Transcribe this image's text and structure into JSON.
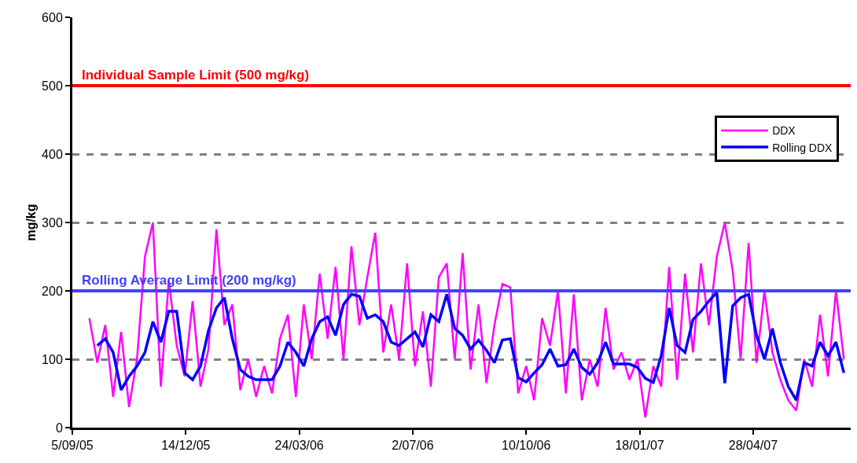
{
  "chart_data": {
    "type": "line",
    "ylabel": "mg/kg",
    "x": [
      "2005-09-20",
      "2005-09-27",
      "2005-10-04",
      "2005-10-11",
      "2005-10-18",
      "2005-10-25",
      "2005-11-01",
      "2005-11-08",
      "2005-11-15",
      "2005-11-22",
      "2005-11-29",
      "2005-12-06",
      "2005-12-13",
      "2005-12-20",
      "2005-12-27",
      "2006-01-03",
      "2006-01-10",
      "2006-01-17",
      "2006-01-24",
      "2006-01-31",
      "2006-02-07",
      "2006-02-14",
      "2006-02-21",
      "2006-02-28",
      "2006-03-07",
      "2006-03-14",
      "2006-03-21",
      "2006-03-28",
      "2006-04-04",
      "2006-04-11",
      "2006-04-18",
      "2006-04-25",
      "2006-05-02",
      "2006-05-09",
      "2006-05-16",
      "2006-05-23",
      "2006-05-30",
      "2006-06-06",
      "2006-06-13",
      "2006-06-20",
      "2006-06-27",
      "2006-07-04",
      "2006-07-11",
      "2006-07-18",
      "2006-07-25",
      "2006-08-01",
      "2006-08-08",
      "2006-08-15",
      "2006-08-22",
      "2006-08-29",
      "2006-09-05",
      "2006-09-12",
      "2006-09-19",
      "2006-09-26",
      "2006-10-03",
      "2006-10-10",
      "2006-10-17",
      "2006-10-24",
      "2006-10-31",
      "2006-11-07",
      "2006-11-14",
      "2006-11-21",
      "2006-11-28",
      "2006-12-05",
      "2006-12-12",
      "2006-12-19",
      "2006-12-26",
      "2007-01-02",
      "2007-01-09",
      "2007-01-16",
      "2007-01-23",
      "2007-01-30",
      "2007-02-06",
      "2007-02-13",
      "2007-02-20",
      "2007-02-27",
      "2007-03-06",
      "2007-03-13",
      "2007-03-20",
      "2007-03-27",
      "2007-04-03",
      "2007-04-10",
      "2007-04-17",
      "2007-04-24",
      "2007-05-01",
      "2007-05-08",
      "2007-05-15",
      "2007-05-22",
      "2007-05-29",
      "2007-06-05",
      "2007-06-12",
      "2007-06-19",
      "2007-06-26",
      "2007-07-03",
      "2007-07-10",
      "2007-07-17"
    ],
    "series": [
      {
        "name": "DDX",
        "color": "#ff00ff",
        "values": [
          160,
          95,
          150,
          45,
          140,
          30,
          100,
          250,
          300,
          60,
          215,
          120,
          75,
          185,
          60,
          115,
          290,
          150,
          180,
          55,
          100,
          45,
          90,
          50,
          130,
          165,
          45,
          180,
          100,
          225,
          130,
          235,
          100,
          265,
          150,
          220,
          285,
          110,
          180,
          100,
          240,
          90,
          170,
          60,
          220,
          240,
          100,
          255,
          85,
          180,
          65,
          150,
          210,
          205,
          50,
          90,
          40,
          160,
          120,
          200,
          50,
          195,
          40,
          100,
          60,
          175,
          85,
          110,
          70,
          100,
          15,
          90,
          60,
          235,
          70,
          225,
          110,
          240,
          150,
          250,
          300,
          230,
          100,
          270,
          95,
          200,
          110,
          70,
          40,
          25,
          100,
          60,
          165,
          75,
          200,
          100
        ]
      },
      {
        "name": "Rolling DDX",
        "color": "#0000ff",
        "values": [
          null,
          120,
          130,
          110,
          55,
          75,
          90,
          110,
          155,
          125,
          170,
          170,
          80,
          70,
          90,
          142,
          175,
          190,
          130,
          85,
          75,
          70,
          70,
          70,
          90,
          125,
          110,
          90,
          130,
          155,
          162,
          135,
          180,
          195,
          192,
          160,
          165,
          155,
          125,
          120,
          130,
          140,
          118,
          165,
          155,
          195,
          145,
          135,
          115,
          128,
          113,
          95,
          128,
          130,
          73,
          67,
          80,
          92,
          115,
          90,
          92,
          115,
          88,
          78,
          95,
          125,
          93,
          93,
          93,
          88,
          72,
          66,
          105,
          175,
          120,
          110,
          158,
          170,
          185,
          198,
          65,
          178,
          190,
          195,
          135,
          100,
          145,
          95,
          60,
          40,
          95,
          90,
          125,
          105,
          125,
          80
        ]
      }
    ],
    "xlim": [
      "2005-09-05",
      "2007-07-23"
    ],
    "xticks": [
      {
        "value": "2005-09-05",
        "label": "5/09/05"
      },
      {
        "value": "2005-12-14",
        "label": "14/12/05"
      },
      {
        "value": "2006-03-24",
        "label": "24/03/06"
      },
      {
        "value": "2006-07-02",
        "label": "2/07/06"
      },
      {
        "value": "2006-10-10",
        "label": "10/10/06"
      },
      {
        "value": "2007-01-18",
        "label": "18/01/07"
      },
      {
        "value": "2007-04-28",
        "label": "28/04/07"
      }
    ],
    "ylim": [
      0,
      600
    ],
    "yticks": [
      0,
      100,
      200,
      300,
      400,
      500,
      600
    ],
    "grid": "y",
    "legend": "top right",
    "marker": "none",
    "line_style": "solid",
    "ref_lines": [
      {
        "axis": "y",
        "value": 500,
        "label": "Individual Sample Limit (500 mg/kg)",
        "color": "#ff0000"
      },
      {
        "axis": "y",
        "value": 200,
        "label": "Rolling Average Limit (200 mg/kg)",
        "color": "#4040ff"
      }
    ]
  }
}
